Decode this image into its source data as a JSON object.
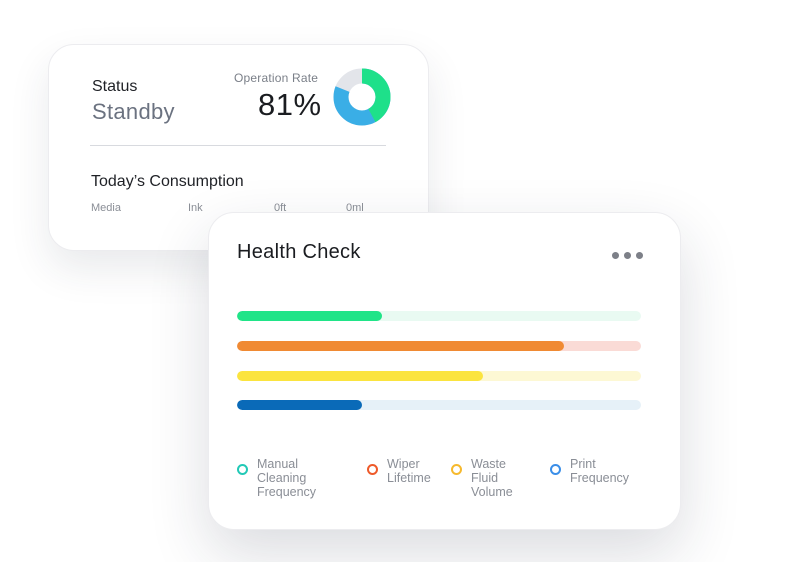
{
  "status_card": {
    "status_label": "Status",
    "status_value": "Standby",
    "operation_rate_label": "Operation Rate",
    "operation_rate_value": "81%",
    "operation_rate_fraction": 0.81,
    "donut_colors": {
      "primary": "#1ee08a",
      "secondary": "#3aaee6",
      "track": "#e3e5ea"
    },
    "consumption_title": "Today’s Consumption",
    "consumption_items": [
      {
        "label": "Media"
      },
      {
        "label": "Ink"
      },
      {
        "label": "0ft"
      },
      {
        "label": "0ml"
      }
    ]
  },
  "health_card": {
    "title": "Health Check",
    "more_icon": "more-dots-icon",
    "bars": [
      {
        "name": "Manual Cleaning Frequency",
        "value": 0.36,
        "color": "#20e488",
        "track_color": "#e9faf2"
      },
      {
        "name": "Wiper Lifetime",
        "value": 0.81,
        "color": "#f08a33",
        "track_color": "#fadbd6"
      },
      {
        "name": "Waste Fluid Volume",
        "value": 0.61,
        "color": "#fbe43f",
        "track_color": "#fdf8d4"
      },
      {
        "name": "Print Frequency",
        "value": 0.31,
        "color": "#0a6ab8",
        "track_color": "#e6f1f8"
      }
    ],
    "legend": [
      {
        "label": "Manual Cleaning\nFrequency",
        "color": "#22c9b6"
      },
      {
        "label": "Wiper\nLifetime",
        "color": "#ee5a2a"
      },
      {
        "label": "Waste Fluid\nVolume",
        "color": "#f6b92d"
      },
      {
        "label": "Print\nFrequency",
        "color": "#3a8ee8"
      }
    ]
  }
}
